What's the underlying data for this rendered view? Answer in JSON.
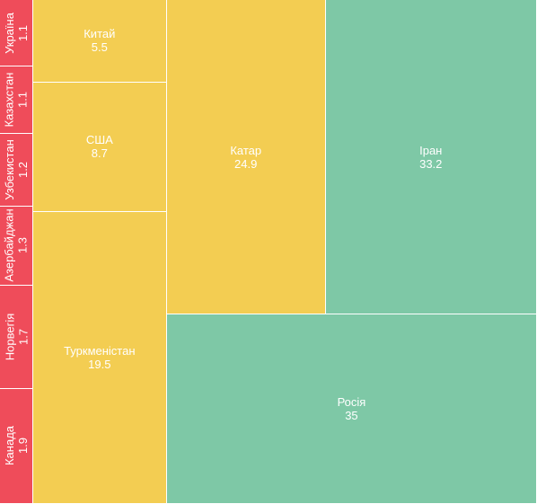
{
  "chart_data": {
    "type": "treemap",
    "colors": {
      "red": "#ef4c5a",
      "yellow": "#f3cd52",
      "green": "#7ec8a6"
    },
    "items": [
      {
        "name": "Україна",
        "value": 1.1,
        "value_label": "1.1",
        "color": "red"
      },
      {
        "name": "Казахстан",
        "value": 1.1,
        "value_label": "1.1",
        "color": "red"
      },
      {
        "name": "Узбекистан",
        "value": 1.2,
        "value_label": "1.2",
        "color": "red"
      },
      {
        "name": "Азербайджан",
        "value": 1.3,
        "value_label": "1.3",
        "color": "red"
      },
      {
        "name": "Норвегія",
        "value": 1.7,
        "value_label": "1.7",
        "color": "red"
      },
      {
        "name": "Канада",
        "value": 1.9,
        "value_label": "1.9",
        "color": "red"
      },
      {
        "name": "Китай",
        "value": 5.5,
        "value_label": "5.5",
        "color": "yellow"
      },
      {
        "name": "США",
        "value": 8.7,
        "value_label": "8.7",
        "color": "yellow"
      },
      {
        "name": "Туркменістан",
        "value": 19.5,
        "value_label": "19.5",
        "color": "yellow"
      },
      {
        "name": "Катар",
        "value": 24.9,
        "value_label": "24.9",
        "color": "yellow"
      },
      {
        "name": "Іран",
        "value": 33.2,
        "value_label": "33.2",
        "color": "green"
      },
      {
        "name": "Росія",
        "value": 35,
        "value_label": "35",
        "color": "green"
      }
    ]
  }
}
